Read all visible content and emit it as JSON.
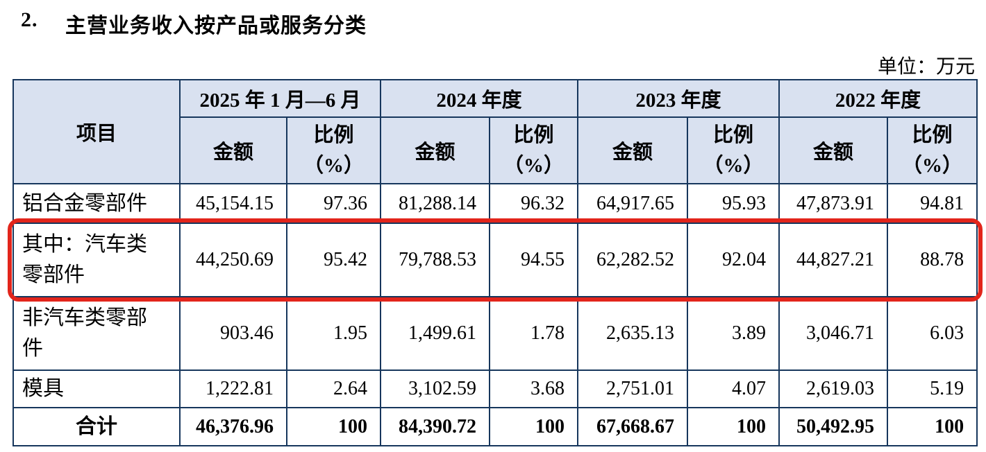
{
  "colors": {
    "header_bg": "#d9e1f0",
    "table_border": "#16365c",
    "highlight_red": "#e2251b"
  },
  "heading": {
    "number": "2.",
    "title": "主营业务收入按产品或服务分类"
  },
  "unit_label": "单位：万元",
  "table": {
    "item_header": "项目",
    "period_headers": [
      "2025 年 1 月—6 月",
      "2024 年度",
      "2023 年度",
      "2022 年度"
    ],
    "sub_headers": {
      "amount": "金额",
      "ratio_line1": "比例",
      "ratio_line2": "（%）"
    },
    "rows": [
      {
        "label": "铝合金零部件",
        "highlight": false,
        "values": [
          "45,154.15",
          "97.36",
          "81,288.14",
          "96.32",
          "64,917.65",
          "95.93",
          "47,873.91",
          "94.81"
        ]
      },
      {
        "label": "其中：汽车类零部件",
        "highlight": true,
        "values": [
          "44,250.69",
          "95.42",
          "79,788.53",
          "94.55",
          "62,282.52",
          "92.04",
          "44,827.21",
          "88.78"
        ]
      },
      {
        "label": "非汽车类零部件",
        "highlight": false,
        "values": [
          "903.46",
          "1.95",
          "1,499.61",
          "1.78",
          "2,635.13",
          "3.89",
          "3,046.71",
          "6.03"
        ]
      },
      {
        "label": "模具",
        "highlight": false,
        "values": [
          "1,222.81",
          "2.64",
          "3,102.59",
          "3.68",
          "2,751.01",
          "4.07",
          "2,619.03",
          "5.19"
        ]
      },
      {
        "label": "合计",
        "highlight": false,
        "is_total": true,
        "values": [
          "46,376.96",
          "100",
          "84,390.72",
          "100",
          "67,668.67",
          "100",
          "50,492.95",
          "100"
        ]
      }
    ]
  }
}
